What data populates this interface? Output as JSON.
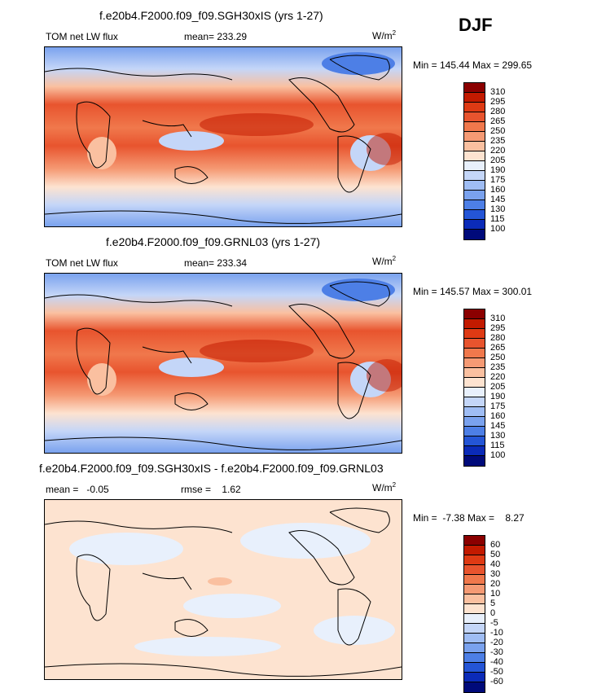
{
  "season": "DJF",
  "panels": [
    {
      "title": "f.e20b4.F2000.f09_f09.SGH30xIS (yrs 1-27)",
      "variable": "TOM net LW flux",
      "mean_label": "mean= 233.29",
      "units": "W/m",
      "units_exp": "2",
      "minmax": "Min = 145.44 Max = 299.65",
      "colorbar_labels": [
        "310",
        "295",
        "280",
        "265",
        "250",
        "235",
        "220",
        "205",
        "190",
        "175",
        "160",
        "145",
        "130",
        "115",
        "100"
      ],
      "colors": [
        "#8b0000",
        "#c21a00",
        "#de3a14",
        "#e8542e",
        "#f0784c",
        "#f59a74",
        "#fac0a0",
        "#fde3d0",
        "#e8f0fc",
        "#c4d6f8",
        "#9fbdf4",
        "#7aa2ee",
        "#4d7fe6",
        "#2455d6",
        "#0b2bb8",
        "#000a7a"
      ]
    },
    {
      "title": "f.e20b4.F2000.f09_f09.GRNL03 (yrs 1-27)",
      "variable": "TOM net LW flux",
      "mean_label": "mean= 233.34",
      "units": "W/m",
      "units_exp": "2",
      "minmax": "Min = 145.57 Max = 300.01",
      "colorbar_labels": [
        "310",
        "295",
        "280",
        "265",
        "250",
        "235",
        "220",
        "205",
        "190",
        "175",
        "160",
        "145",
        "130",
        "115",
        "100"
      ],
      "colors": [
        "#8b0000",
        "#c21a00",
        "#de3a14",
        "#e8542e",
        "#f0784c",
        "#f59a74",
        "#fac0a0",
        "#fde3d0",
        "#e8f0fc",
        "#c4d6f8",
        "#9fbdf4",
        "#7aa2ee",
        "#4d7fe6",
        "#2455d6",
        "#0b2bb8",
        "#000a7a"
      ]
    },
    {
      "title": "f.e20b4.F2000.f09_f09.SGH30xIS - f.e20b4.F2000.f09_f09.GRNL03",
      "variable": "",
      "mean_label": "mean =   -0.05",
      "rmse_label": "rmse =    1.62",
      "units": "W/m",
      "units_exp": "2",
      "minmax": "Min =  -7.38 Max =    8.27",
      "colorbar_labels": [
        "60",
        "50",
        "40",
        "30",
        "20",
        "10",
        "5",
        "0",
        "-5",
        "-10",
        "-20",
        "-30",
        "-40",
        "-50",
        "-60"
      ],
      "colors": [
        "#8b0000",
        "#c21a00",
        "#de3a14",
        "#e8542e",
        "#f0784c",
        "#f59a74",
        "#fac0a0",
        "#fde3d0",
        "#e8f0fc",
        "#c4d6f8",
        "#9fbdf4",
        "#7aa2ee",
        "#4d7fe6",
        "#2455d6",
        "#0b2bb8",
        "#000a7a"
      ]
    }
  ]
}
